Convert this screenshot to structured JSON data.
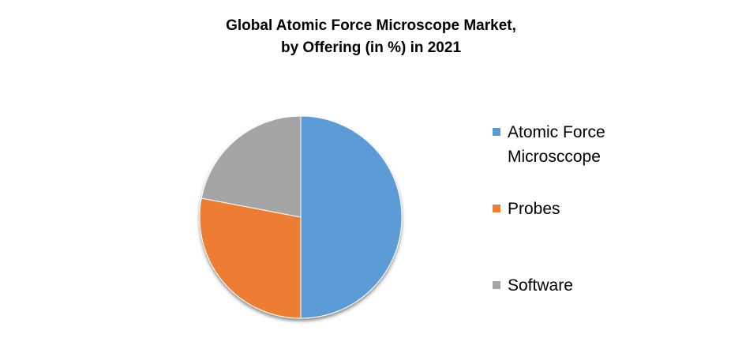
{
  "chart_data": {
    "type": "pie",
    "title": [
      "Global Atomic Force Microscope  Market,",
      "by Offering (in %) in 2021"
    ],
    "categories": [
      "Atomic Force Microsccope",
      "Probes",
      "Software"
    ],
    "values": [
      50,
      28,
      22
    ],
    "colors": [
      "#5b9bd5",
      "#ed7d31",
      "#a5a5a5"
    ],
    "legend": "right"
  }
}
